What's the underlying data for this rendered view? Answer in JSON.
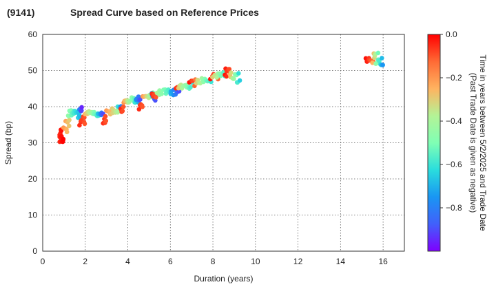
{
  "chart_data": {
    "type": "scatter",
    "title_code": "(9141)",
    "title": "Spread Curve based on Reference Prices",
    "xlabel": "Duration (years)",
    "ylabel": "Spread (bp)",
    "xlim": [
      0,
      17
    ],
    "ylim": [
      0,
      60
    ],
    "xticks": [
      "0",
      "2",
      "4",
      "6",
      "8",
      "10",
      "12",
      "14",
      "16"
    ],
    "yticks": [
      "0",
      "10",
      "20",
      "30",
      "40",
      "50",
      "60"
    ],
    "grid": true,
    "colorbar": {
      "label_line1": "Time in years between 5/2/2025 and Trade Date",
      "label_line2": "(Past Trade Date is given as negative)",
      "range": [
        -1.0,
        0.0
      ],
      "ticks": [
        "0.0",
        "−0.2",
        "−0.4",
        "−0.6",
        "−0.8"
      ],
      "colormap": "rainbow"
    },
    "clusters": [
      {
        "x": [
          0.8,
          0.95
        ],
        "y": [
          29.8,
          33.5
        ],
        "t": [
          -0.05,
          0.0
        ],
        "n": 14
      },
      {
        "x": [
          1.0,
          1.25
        ],
        "y": [
          33.0,
          37.0
        ],
        "t": [
          -0.2,
          -0.3
        ],
        "n": 8
      },
      {
        "x": [
          1.2,
          1.75
        ],
        "y": [
          37.0,
          39.0
        ],
        "t": [
          -0.45,
          -0.7
        ],
        "n": 16
      },
      {
        "x": [
          1.75,
          1.85
        ],
        "y": [
          38.5,
          40.3
        ],
        "t": [
          -0.8,
          -0.95
        ],
        "n": 5
      },
      {
        "x": [
          1.75,
          2.0
        ],
        "y": [
          35.0,
          37.5
        ],
        "t": [
          -0.05,
          -0.1
        ],
        "n": 8
      },
      {
        "x": [
          2.0,
          2.6
        ],
        "y": [
          37.5,
          38.6
        ],
        "t": [
          -0.25,
          -0.6
        ],
        "n": 18
      },
      {
        "x": [
          2.6,
          2.85
        ],
        "y": [
          37.5,
          38.6
        ],
        "t": [
          -0.65,
          -0.9
        ],
        "n": 7
      },
      {
        "x": [
          2.85,
          3.0
        ],
        "y": [
          35.5,
          37.5
        ],
        "t": [
          -0.05,
          -0.1
        ],
        "n": 6
      },
      {
        "x": [
          3.0,
          3.55
        ],
        "y": [
          37.8,
          39.5
        ],
        "t": [
          -0.2,
          -0.4
        ],
        "n": 12
      },
      {
        "x": [
          3.55,
          3.7
        ],
        "y": [
          39.5,
          40.2
        ],
        "t": [
          -0.6,
          -0.8
        ],
        "n": 4
      },
      {
        "x": [
          3.65,
          3.8
        ],
        "y": [
          38.5,
          40.0
        ],
        "t": [
          -0.05,
          -0.1
        ],
        "n": 5
      },
      {
        "x": [
          3.8,
          4.5
        ],
        "y": [
          41.0,
          42.5
        ],
        "t": [
          -0.2,
          -0.7
        ],
        "n": 16
      },
      {
        "x": [
          4.4,
          4.6
        ],
        "y": [
          41.8,
          42.8
        ],
        "t": [
          -0.75,
          -0.9
        ],
        "n": 5
      },
      {
        "x": [
          4.55,
          4.7
        ],
        "y": [
          39.2,
          40.8
        ],
        "t": [
          -0.05,
          -0.1
        ],
        "n": 6
      },
      {
        "x": [
          4.7,
          5.2
        ],
        "y": [
          42.5,
          43.8
        ],
        "t": [
          -0.2,
          -0.5
        ],
        "n": 12
      },
      {
        "x": [
          5.1,
          5.4
        ],
        "y": [
          41.0,
          44.0
        ],
        "t": [
          -0.75,
          -0.95
        ],
        "n": 8
      },
      {
        "x": [
          5.15,
          5.3
        ],
        "y": [
          42.5,
          44.0
        ],
        "t": [
          -0.05,
          -0.1
        ],
        "n": 4
      },
      {
        "x": [
          5.4,
          6.0
        ],
        "y": [
          43.5,
          45.0
        ],
        "t": [
          -0.4,
          -0.6
        ],
        "n": 12
      },
      {
        "x": [
          6.0,
          6.4
        ],
        "y": [
          43.0,
          44.5
        ],
        "t": [
          -0.7,
          -0.9
        ],
        "n": 8
      },
      {
        "x": [
          6.25,
          6.4
        ],
        "y": [
          45.0,
          46.0
        ],
        "t": [
          -0.05,
          -0.1
        ],
        "n": 4
      },
      {
        "x": [
          6.4,
          7.0
        ],
        "y": [
          45.0,
          46.8
        ],
        "t": [
          -0.3,
          -0.6
        ],
        "n": 12
      },
      {
        "x": [
          6.9,
          7.2
        ],
        "y": [
          45.5,
          47.5
        ],
        "t": [
          -0.02,
          -0.15
        ],
        "n": 5
      },
      {
        "x": [
          7.2,
          7.9
        ],
        "y": [
          46.5,
          48.0
        ],
        "t": [
          -0.3,
          -0.6
        ],
        "n": 12
      },
      {
        "x": [
          7.9,
          8.3
        ],
        "y": [
          47.5,
          49.2
        ],
        "t": [
          -0.02,
          -0.15
        ],
        "n": 6
      },
      {
        "x": [
          8.0,
          8.55
        ],
        "y": [
          48.0,
          49.5
        ],
        "t": [
          -0.3,
          -0.6
        ],
        "n": 8
      },
      {
        "x": [
          8.55,
          8.8
        ],
        "y": [
          48.0,
          51.0
        ],
        "t": [
          -0.02,
          -0.1
        ],
        "n": 7
      },
      {
        "x": [
          8.8,
          9.25
        ],
        "y": [
          46.5,
          49.5
        ],
        "t": [
          -0.25,
          -0.65
        ],
        "n": 12
      },
      {
        "x": [
          15.2,
          15.5
        ],
        "y": [
          52.5,
          54.0
        ],
        "t": [
          -0.02,
          -0.12
        ],
        "n": 8
      },
      {
        "x": [
          15.5,
          16.0
        ],
        "y": [
          51.0,
          54.8
        ],
        "t": [
          -0.25,
          -0.75
        ],
        "n": 16
      }
    ]
  }
}
